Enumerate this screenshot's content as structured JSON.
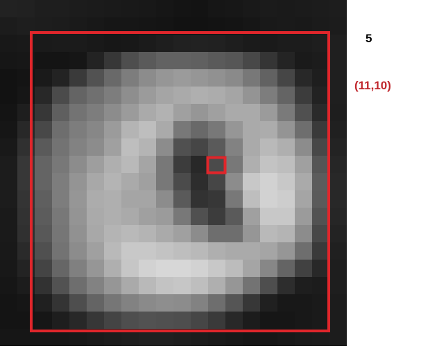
{
  "count_label": "5",
  "coord_label": "(11,10)",
  "colors": {
    "outer_box": "#e0262b",
    "selected_cell": "#e0262b",
    "coord_text": "#c0272d",
    "count_text": "#000000"
  },
  "grid": {
    "rows": 20,
    "cols": 20,
    "selected_cell": {
      "row": 9,
      "col": 12
    },
    "outer_box_cells": {
      "row_start": 2,
      "row_end": 19,
      "col_start": 2,
      "col_end": 19
    },
    "pixels": [
      [
        34,
        33,
        30,
        30,
        28,
        27,
        26,
        25,
        24,
        22,
        20,
        19,
        22,
        23,
        25,
        27,
        26,
        27,
        28,
        29
      ],
      [
        28,
        30,
        29,
        28,
        26,
        24,
        22,
        22,
        21,
        20,
        18,
        18,
        19,
        20,
        22,
        25,
        26,
        25,
        27,
        28
      ],
      [
        24,
        25,
        26,
        27,
        27,
        25,
        23,
        24,
        27,
        30,
        33,
        34,
        33,
        30,
        27,
        26,
        28,
        28,
        30,
        31
      ],
      [
        22,
        23,
        20,
        20,
        22,
        35,
        55,
        78,
        90,
        98,
        98,
        96,
        90,
        86,
        72,
        53,
        36,
        26,
        28,
        31
      ],
      [
        18,
        20,
        26,
        35,
        58,
        82,
        105,
        125,
        140,
        150,
        155,
        150,
        145,
        138,
        120,
        98,
        70,
        40,
        30,
        31
      ],
      [
        18,
        22,
        40,
        75,
        100,
        112,
        125,
        142,
        155,
        165,
        170,
        175,
        172,
        165,
        148,
        125,
        100,
        60,
        34,
        31
      ],
      [
        20,
        30,
        55,
        95,
        115,
        125,
        140,
        155,
        170,
        178,
        160,
        150,
        160,
        170,
        170,
        155,
        122,
        80,
        42,
        30
      ],
      [
        22,
        40,
        72,
        110,
        125,
        135,
        155,
        180,
        190,
        170,
        120,
        105,
        120,
        150,
        170,
        172,
        148,
        110,
        58,
        32
      ],
      [
        25,
        48,
        90,
        115,
        130,
        140,
        160,
        190,
        180,
        140,
        80,
        70,
        90,
        130,
        170,
        185,
        175,
        140,
        72,
        35
      ],
      [
        28,
        55,
        100,
        120,
        140,
        158,
        175,
        185,
        165,
        120,
        60,
        40,
        75,
        120,
        175,
        195,
        190,
        160,
        85,
        38
      ],
      [
        28,
        55,
        100,
        125,
        148,
        168,
        180,
        170,
        160,
        120,
        75,
        45,
        70,
        140,
        200,
        210,
        200,
        170,
        92,
        40
      ],
      [
        28,
        52,
        95,
        125,
        150,
        172,
        175,
        165,
        165,
        140,
        90,
        50,
        55,
        120,
        190,
        210,
        205,
        165,
        90,
        40
      ],
      [
        26,
        50,
        92,
        120,
        148,
        170,
        175,
        170,
        160,
        155,
        120,
        80,
        60,
        90,
        160,
        200,
        200,
        155,
        82,
        38
      ],
      [
        26,
        48,
        88,
        118,
        145,
        168,
        180,
        185,
        180,
        170,
        160,
        140,
        110,
        110,
        150,
        185,
        180,
        140,
        72,
        35
      ],
      [
        25,
        42,
        80,
        115,
        140,
        160,
        185,
        200,
        200,
        195,
        190,
        185,
        175,
        170,
        170,
        165,
        150,
        110,
        58,
        32
      ],
      [
        24,
        35,
        68,
        102,
        128,
        150,
        175,
        198,
        210,
        215,
        215,
        210,
        200,
        188,
        165,
        135,
        100,
        65,
        40,
        30
      ],
      [
        22,
        28,
        50,
        82,
        110,
        130,
        150,
        170,
        185,
        195,
        198,
        190,
        175,
        150,
        115,
        78,
        45,
        30,
        28,
        30
      ],
      [
        20,
        22,
        32,
        52,
        78,
        100,
        118,
        130,
        138,
        142,
        140,
        130,
        110,
        85,
        55,
        32,
        24,
        24,
        26,
        28
      ],
      [
        20,
        20,
        22,
        30,
        40,
        55,
        68,
        78,
        82,
        80,
        78,
        70,
        58,
        40,
        28,
        22,
        22,
        24,
        26,
        28
      ],
      [
        22,
        22,
        22,
        22,
        24,
        26,
        28,
        30,
        32,
        32,
        30,
        28,
        26,
        24,
        22,
        22,
        24,
        26,
        27,
        28
      ]
    ]
  }
}
